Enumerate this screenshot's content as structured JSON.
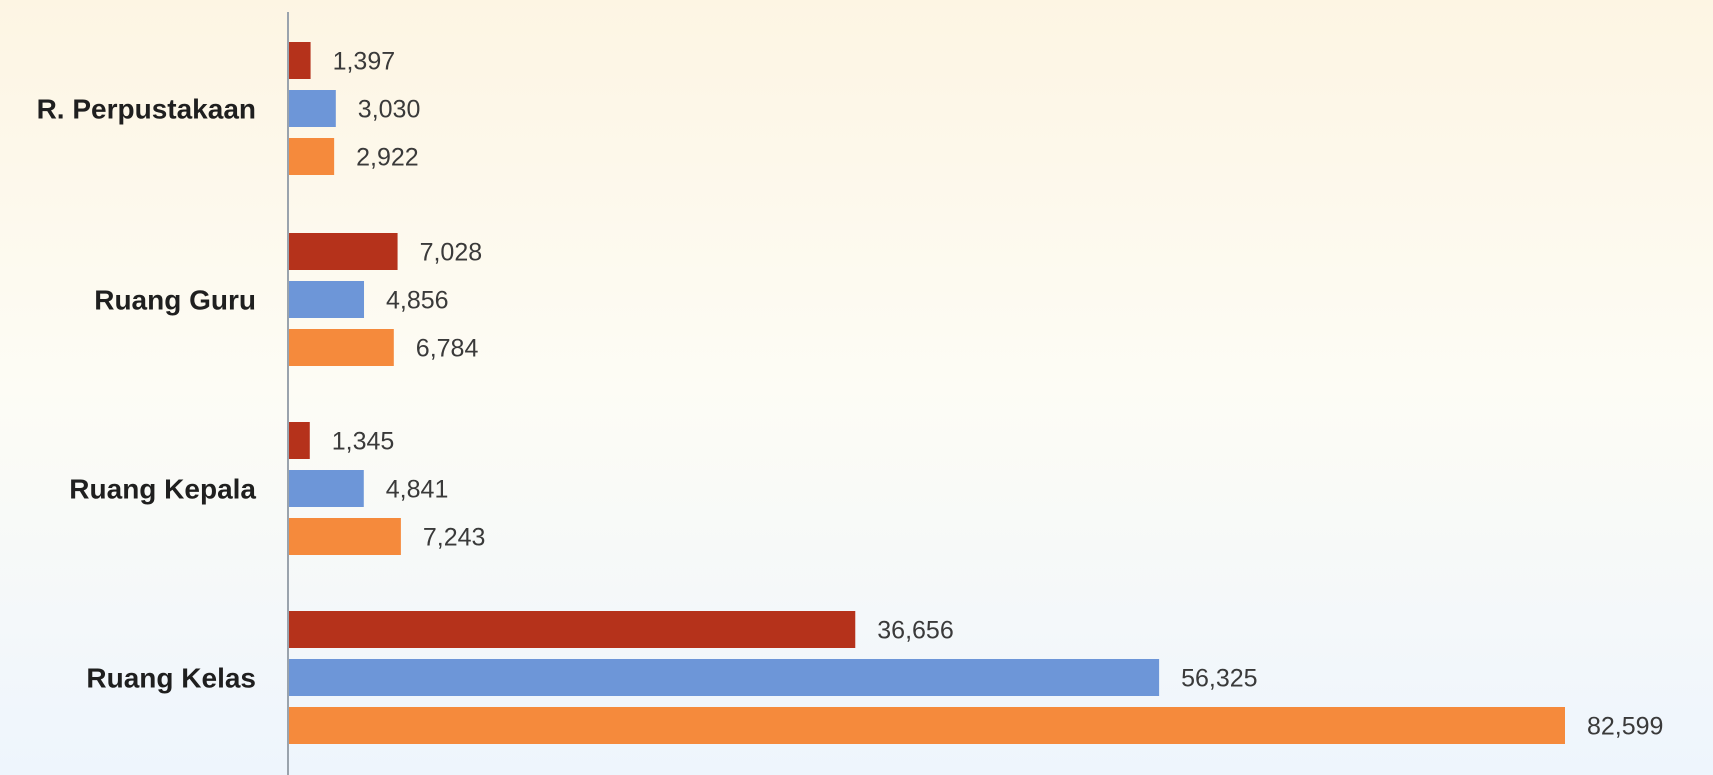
{
  "chart_data": {
    "type": "bar",
    "orientation": "horizontal",
    "categories": [
      "R. Perpustakaan",
      "Ruang Guru",
      "Ruang Kepala",
      "Ruang Kelas"
    ],
    "series": [
      {
        "values": [
          1397,
          7028,
          1345,
          36656
        ],
        "labels": [
          "1,397",
          "7,028",
          "1,345",
          "36,656"
        ],
        "color": "#b5321b"
      },
      {
        "values": [
          3030,
          4856,
          4841,
          56325
        ],
        "labels": [
          "3,030",
          "4,856",
          "4,841",
          "56,325"
        ],
        "color": "#6d96d8"
      },
      {
        "values": [
          2922,
          6784,
          7243,
          82599
        ],
        "labels": [
          "2,922",
          "6,784",
          "7,243",
          "82,599"
        ],
        "color": "#f58a3c"
      }
    ],
    "xlim": [
      0,
      82599
    ],
    "grid": false,
    "legend": "none",
    "title": "",
    "xlabel": "",
    "ylabel": ""
  }
}
